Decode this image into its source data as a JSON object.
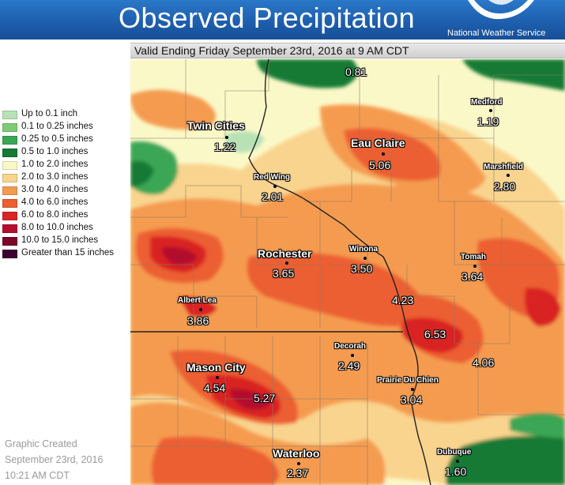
{
  "header": {
    "title": "Observed Precipitation",
    "agency": "National Weather Service"
  },
  "valid_time": "Valid Ending Friday September 23rd, 2016 at 9 AM CDT",
  "legend": [
    {
      "label": "Up to 0.1 inch",
      "color": "#b7e2b5"
    },
    {
      "label": "0.1 to 0.25 inches",
      "color": "#7fcb75"
    },
    {
      "label": "0.25 to 0.5 inches",
      "color": "#3aa654"
    },
    {
      "label": "0.5 to 1.0 inches",
      "color": "#157a35"
    },
    {
      "label": "1.0 to 2.0 inches",
      "color": "#fbf8c8"
    },
    {
      "label": "2.0 to 3.0 inches",
      "color": "#f9d48e"
    },
    {
      "label": "3.0 to 4.0 inches",
      "color": "#f59b4f"
    },
    {
      "label": "4.0 to 6.0 inches",
      "color": "#ec5f30"
    },
    {
      "label": "6.0 to 8.0 inches",
      "color": "#d92424"
    },
    {
      "label": "8.0 to 10.0 inches",
      "color": "#b30f2e"
    },
    {
      "label": "10.0 to 15.0 inches",
      "color": "#7c0528"
    },
    {
      "label": "Greater than 15 inches",
      "color": "#3d0230"
    }
  ],
  "credit": {
    "line1": "Graphic Created",
    "line2": "September 23rd, 2016",
    "line3": "10:21 AM CDT"
  },
  "stations": [
    {
      "id": "north",
      "name": "",
      "value": "0.81"
    },
    {
      "id": "medford",
      "name": "Medford",
      "value": "1.19"
    },
    {
      "id": "twin-cities",
      "name": "Twin Cities",
      "value": "1.22"
    },
    {
      "id": "eau-claire",
      "name": "Eau Claire",
      "value": "5.06"
    },
    {
      "id": "marshfield",
      "name": "Marshfield",
      "value": "2.80"
    },
    {
      "id": "red-wing",
      "name": "Red Wing",
      "value": "2.01"
    },
    {
      "id": "rochester",
      "name": "Rochester",
      "value": "3.65"
    },
    {
      "id": "winona",
      "name": "Winona",
      "value": "3.50"
    },
    {
      "id": "tomah",
      "name": "Tomah",
      "value": "3.64"
    },
    {
      "id": "albert-lea",
      "name": "Albert Lea",
      "value": "3.86"
    },
    {
      "id": "la-crosse",
      "name": "",
      "value": "4.23"
    },
    {
      "id": "viroqua",
      "name": "",
      "value": "6.53"
    },
    {
      "id": "richland",
      "name": "",
      "value": "4.06"
    },
    {
      "id": "decorah",
      "name": "Decorah",
      "value": "2.49"
    },
    {
      "id": "mason-city",
      "name": "Mason City",
      "value": "4.54"
    },
    {
      "id": "charles-city",
      "name": "",
      "value": "5.27"
    },
    {
      "id": "prairie-du-chien",
      "name": "Prairie Du Chien",
      "value": "3.04"
    },
    {
      "id": "waterloo",
      "name": "Waterloo",
      "value": "2.37"
    },
    {
      "id": "dubuque",
      "name": "Dubuque",
      "value": "1.60"
    }
  ]
}
